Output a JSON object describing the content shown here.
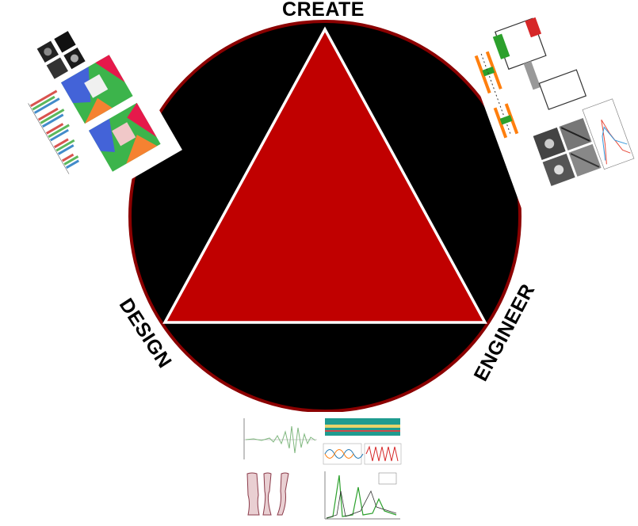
{
  "labels": {
    "top": "CREATE",
    "left": "DESIGN",
    "right": "ENGINEER"
  },
  "colors": {
    "circle_fill": "#000000",
    "circle_stroke": "#8b0000",
    "triangle_fill": "#c00000",
    "triangle_stroke": "#ffffff"
  },
  "thumbnail_groups": [
    {
      "id": "top-left",
      "description_icon": "simulation-results-collage"
    },
    {
      "id": "top-right",
      "description_icon": "engineering-figures-collage"
    },
    {
      "id": "bottom",
      "description_icon": "signal-analysis-collage"
    }
  ]
}
